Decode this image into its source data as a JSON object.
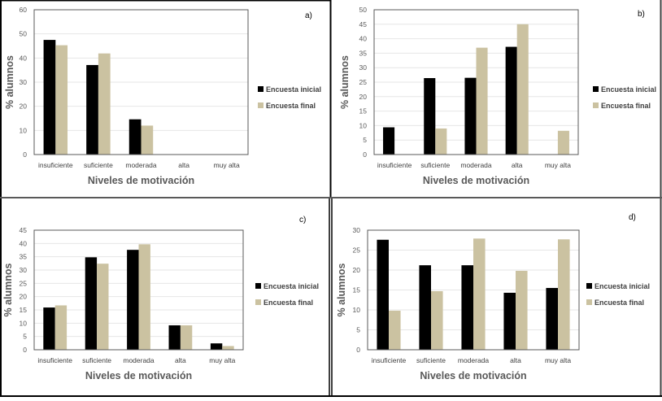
{
  "colors": {
    "initial": "#000000",
    "final": "#CBC2A1",
    "grid": "#E6E6E6",
    "axis_frame": "#595959"
  },
  "chart_data": [
    {
      "type": "bar",
      "panel_label": "a)",
      "title": "",
      "xlabel": "Niveles de motivación",
      "ylabel": "% alumnos",
      "categories": [
        "insuficiente",
        "suficiente",
        "moderada",
        "alta",
        "muy alta"
      ],
      "ylim": [
        0,
        60
      ],
      "yticks": [
        0,
        10,
        20,
        30,
        40,
        50,
        60
      ],
      "grid": true,
      "legend_position": "right",
      "series": [
        {
          "name": "Encuesta inicial",
          "values": [
            47.5,
            37.1,
            14.6,
            0,
            0
          ]
        },
        {
          "name": "Encuesta final",
          "values": [
            45.3,
            41.9,
            12.0,
            0,
            0
          ]
        }
      ]
    },
    {
      "type": "bar",
      "panel_label": "b)",
      "title": "",
      "xlabel": "Niveles de motivación",
      "ylabel": "% alumnos",
      "categories": [
        "insuficiente",
        "suficiente",
        "moderada",
        "alta",
        "muy alta"
      ],
      "ylim": [
        0,
        50
      ],
      "yticks": [
        0,
        5,
        10,
        15,
        20,
        25,
        30,
        35,
        40,
        45,
        50
      ],
      "grid": true,
      "legend_position": "right",
      "series": [
        {
          "name": "Encuesta inicial",
          "values": [
            9.4,
            26.4,
            26.5,
            37.2,
            0
          ]
        },
        {
          "name": "Encuesta final",
          "values": [
            0,
            9.0,
            36.9,
            45.0,
            8.2
          ]
        }
      ]
    },
    {
      "type": "bar",
      "panel_label": "c)",
      "title": "",
      "xlabel": "Niveles de motivación",
      "ylabel": "% alumnos",
      "categories": [
        "insuficiente",
        "suficiente",
        "moderada",
        "alta",
        "muy alta"
      ],
      "ylim": [
        0,
        45
      ],
      "yticks": [
        0,
        5,
        10,
        15,
        20,
        25,
        30,
        35,
        40,
        45
      ],
      "grid": true,
      "legend_position": "right",
      "series": [
        {
          "name": "Encuesta inicial",
          "values": [
            15.9,
            34.8,
            37.6,
            9.2,
            2.4
          ]
        },
        {
          "name": "Encuesta final",
          "values": [
            16.7,
            32.4,
            39.7,
            9.2,
            1.4
          ]
        }
      ]
    },
    {
      "type": "bar",
      "panel_label": "d)",
      "title": "",
      "xlabel": "Niveles de motivación",
      "ylabel": "% alumnos",
      "categories": [
        "insuficiente",
        "suficiente",
        "moderada",
        "alta",
        "muy alta"
      ],
      "ylim": [
        0,
        30
      ],
      "yticks": [
        0,
        5,
        10,
        15,
        20,
        25,
        30
      ],
      "grid": true,
      "legend_position": "right",
      "series": [
        {
          "name": "Encuesta inicial",
          "values": [
            27.6,
            21.2,
            21.2,
            14.3,
            15.5
          ]
        },
        {
          "name": "Encuesta final",
          "values": [
            9.8,
            14.7,
            27.9,
            19.8,
            27.7
          ]
        }
      ]
    }
  ]
}
